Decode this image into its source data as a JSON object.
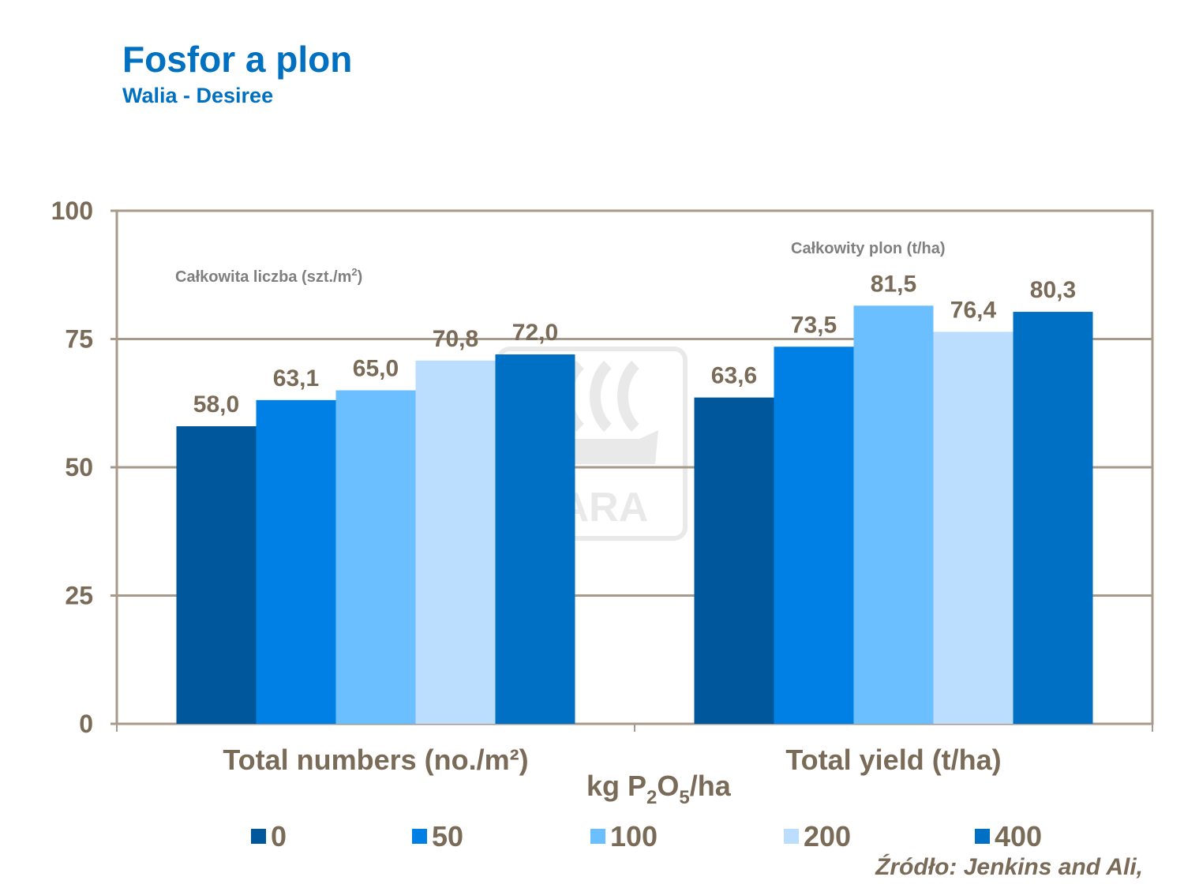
{
  "title": "Fosfor a plon",
  "subtitle": "Walia - Desiree",
  "source": "Źródło: Jenkins and Ali,",
  "watermark": "YARA",
  "chart_data": {
    "type": "bar",
    "categories": [
      "Total numbers (no./m²)",
      "Total yield (t/ha)"
    ],
    "series": [
      {
        "name": "0",
        "values": [
          58.0,
          63.6
        ],
        "labels": [
          "58,0",
          "63,6"
        ],
        "color": "#00579B"
      },
      {
        "name": "50",
        "values": [
          63.1,
          73.5
        ],
        "labels": [
          "63,1",
          "73,5"
        ],
        "color": "#0080E4"
      },
      {
        "name": "100",
        "values": [
          65.0,
          81.5
        ],
        "labels": [
          "65,0",
          "81,5"
        ],
        "color": "#6BBFFF"
      },
      {
        "name": "200",
        "values": [
          70.8,
          76.4
        ],
        "labels": [
          "70,8",
          "76,4"
        ],
        "color": "#BBDEFF"
      },
      {
        "name": "400",
        "values": [
          72.0,
          80.3
        ],
        "labels": [
          "72,0",
          "80,3"
        ],
        "color": "#0070C4"
      }
    ],
    "ylim": [
      0,
      100
    ],
    "yticks": [
      0,
      25,
      50,
      75,
      100
    ],
    "xlabel": {
      "prefix": "kg P",
      "sub1": "2",
      "mid": "O",
      "sub2": "5",
      "suffix": "/ha"
    },
    "annotations": [
      {
        "base": "Całkowita liczba (szt./m",
        "sup": "2",
        "end": ")"
      },
      {
        "base": "Całkowity plon (t/ha)",
        "sup": "",
        "end": ""
      }
    ],
    "grid": true,
    "legend_position": "bottom"
  }
}
